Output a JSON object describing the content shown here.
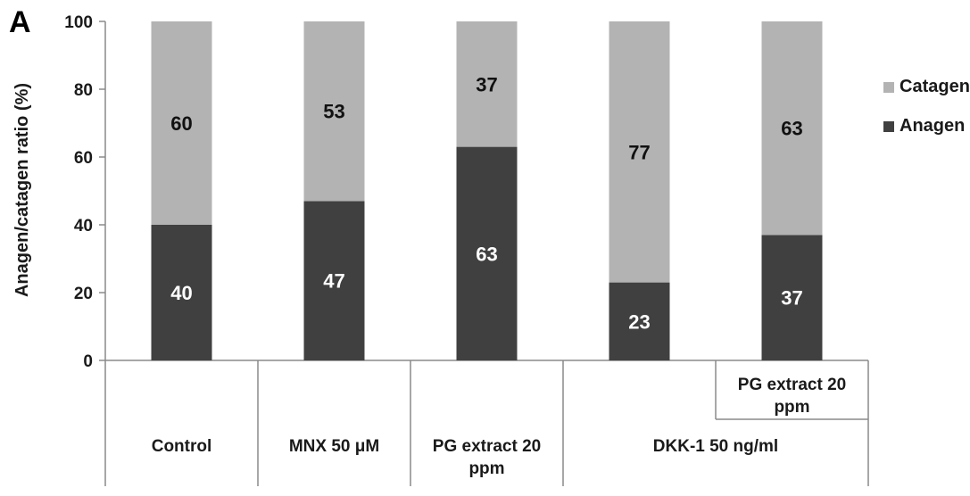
{
  "panel_label": "A",
  "chart_data": {
    "type": "bar",
    "stacked": true,
    "ylabel": "Anagen/catagen ratio (%)",
    "ylim": [
      0,
      100
    ],
    "yticks": [
      0,
      20,
      40,
      60,
      80,
      100
    ],
    "categories": [
      [
        "Control"
      ],
      [
        "MNX 50 μM"
      ],
      [
        "PG extract 20",
        "ppm"
      ],
      [
        "DKK-1 50 ng/ml"
      ],
      [
        "PG extract 20",
        "ppm"
      ]
    ],
    "group_label": "DKK-1 50 ng/ml",
    "series": [
      {
        "name": "Anagen",
        "color": "#404040",
        "label_color": "#ffffff",
        "values": [
          40,
          47,
          63,
          23,
          37
        ]
      },
      {
        "name": "Catagen",
        "color": "#b3b3b3",
        "label_color": "#111111",
        "values": [
          60,
          53,
          37,
          77,
          63
        ]
      }
    ],
    "legend": {
      "position": "right",
      "order": [
        "Catagen",
        "Anagen"
      ]
    }
  }
}
